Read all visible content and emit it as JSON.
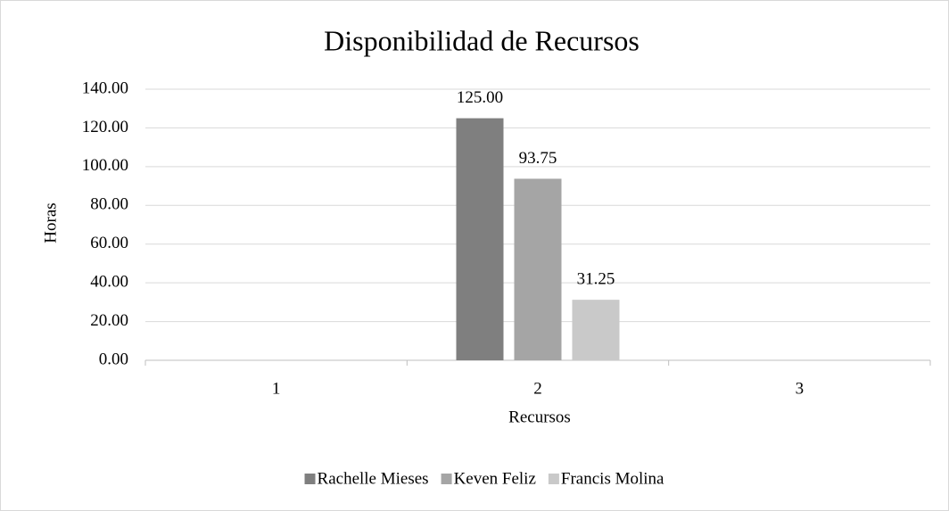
{
  "chart_data": {
    "type": "bar",
    "title": "Disponibilidad de Recursos",
    "x_label": "Recursos",
    "y_label": "Horas",
    "categories": [
      "1",
      "2",
      "3"
    ],
    "series": [
      {
        "name": "Rachelle Mieses",
        "color": "#7f7f7f",
        "values": [
          null,
          125,
          null
        ],
        "value_labels": [
          null,
          "125.00",
          null
        ]
      },
      {
        "name": "Keven Feliz",
        "color": "#a5a5a5",
        "values": [
          null,
          93.75,
          null
        ],
        "value_labels": [
          null,
          "93.75",
          null
        ]
      },
      {
        "name": "Francis Molina",
        "color": "#c9c9c9",
        "values": [
          null,
          31.25,
          null
        ],
        "value_labels": [
          null,
          "31.25",
          null
        ]
      }
    ],
    "ylim": [
      0,
      140
    ],
    "yticks": [
      {
        "value": 0,
        "label": "0.00"
      },
      {
        "value": 20,
        "label": "20.00"
      },
      {
        "value": 40,
        "label": "40.00"
      },
      {
        "value": 60,
        "label": "60.00"
      },
      {
        "value": 80,
        "label": "80.00"
      },
      {
        "value": 100,
        "label": "100.00"
      },
      {
        "value": 120,
        "label": "120.00"
      },
      {
        "value": 140,
        "label": "140.00"
      }
    ],
    "grid": true,
    "legend": "bottom"
  }
}
